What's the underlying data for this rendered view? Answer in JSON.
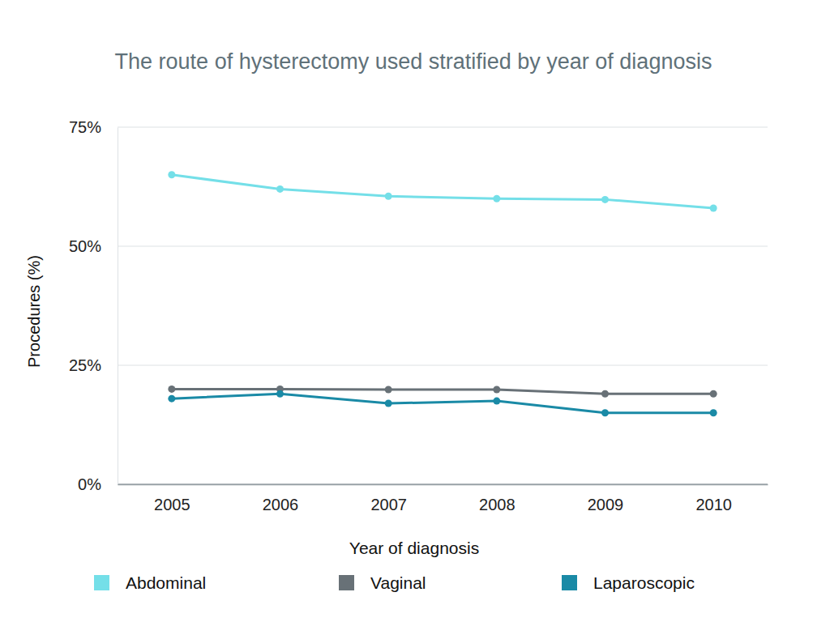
{
  "chart_data": {
    "type": "line",
    "title": "The route of hysterectomy used stratified by year of diagnosis",
    "x_label": "Year of diagnosis",
    "y_label": "Procedures (%)",
    "categories": [
      "2005",
      "2006",
      "2007",
      "2008",
      "2009",
      "2010"
    ],
    "series": [
      {
        "name": "Abdominal",
        "color": "#74dfe8",
        "values": [
          65,
          62,
          60.5,
          60,
          59.8,
          58
        ]
      },
      {
        "name": "Vaginal",
        "color": "#687177",
        "values": [
          20,
          20,
          19.9,
          19.9,
          19,
          19
        ]
      },
      {
        "name": "Laparoscopic",
        "color": "#1a8aa6",
        "values": [
          18,
          19,
          17,
          17.5,
          15,
          15
        ]
      }
    ],
    "ylim": [
      0,
      75
    ],
    "yticks": [
      {
        "value": 0,
        "label": "0%"
      },
      {
        "value": 25,
        "label": "25%"
      },
      {
        "value": 50,
        "label": "50%"
      },
      {
        "value": 75,
        "label": "75%"
      }
    ],
    "grid": true,
    "legend": "bottom",
    "marker": "circle"
  }
}
